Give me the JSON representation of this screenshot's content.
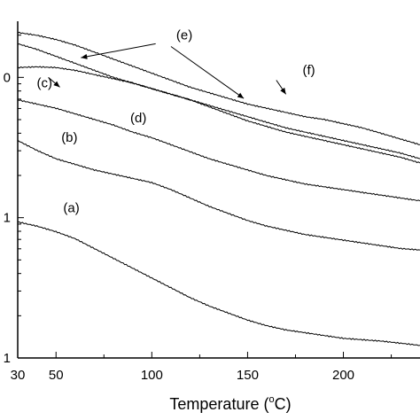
{
  "chart_data": {
    "type": "line",
    "title": "",
    "xlabel": "Temperature (°C)",
    "xlabel_parts": {
      "main": "Temperature (",
      "sup": "o",
      "tail": "C)"
    },
    "ylabel": "",
    "xlim": [
      30,
      240
    ],
    "ylim_log10": [
      -3.0,
      -0.6
    ],
    "x_ticks": [
      30,
      50,
      100,
      150,
      200
    ],
    "y_tick_labels": [
      {
        "label": "0",
        "log10": -1.0
      },
      {
        "label": "1",
        "log10": -2.0
      },
      {
        "label": "1",
        "log10": -3.0
      }
    ],
    "y_scale": "log",
    "grid": false,
    "series": [
      {
        "name": "(a)",
        "x": [
          30,
          40,
          50,
          60,
          70,
          80,
          90,
          100,
          110,
          120,
          130,
          140,
          150,
          160,
          170,
          180,
          190,
          200,
          210,
          220,
          230,
          240
        ],
        "y_log10": [
          -2.03,
          -2.06,
          -2.1,
          -2.15,
          -2.22,
          -2.29,
          -2.36,
          -2.43,
          -2.5,
          -2.57,
          -2.63,
          -2.68,
          -2.73,
          -2.77,
          -2.8,
          -2.82,
          -2.84,
          -2.86,
          -2.87,
          -2.88,
          -2.895,
          -2.91
        ]
      },
      {
        "name": "(b)",
        "x": [
          30,
          40,
          50,
          60,
          70,
          80,
          90,
          100,
          110,
          120,
          130,
          140,
          150,
          160,
          170,
          180,
          190,
          200,
          210,
          220,
          230,
          240
        ],
        "y_log10": [
          -1.45,
          -1.52,
          -1.58,
          -1.62,
          -1.66,
          -1.69,
          -1.72,
          -1.75,
          -1.8,
          -1.86,
          -1.92,
          -1.97,
          -2.02,
          -2.06,
          -2.09,
          -2.12,
          -2.14,
          -2.16,
          -2.18,
          -2.2,
          -2.22,
          -2.23
        ]
      },
      {
        "name": "(c)",
        "x": [
          30,
          40,
          50,
          60,
          70,
          80,
          90,
          100,
          110,
          120,
          130,
          140,
          150,
          160,
          170,
          180,
          190,
          200,
          210,
          220,
          230,
          240
        ],
        "y_log10": [
          -0.93,
          -0.925,
          -0.93,
          -0.95,
          -0.98,
          -1.01,
          -1.04,
          -1.08,
          -1.12,
          -1.16,
          -1.21,
          -1.26,
          -1.31,
          -1.35,
          -1.39,
          -1.42,
          -1.45,
          -1.48,
          -1.51,
          -1.54,
          -1.57,
          -1.61
        ]
      },
      {
        "name": "(d)",
        "x": [
          30,
          40,
          50,
          60,
          70,
          80,
          90,
          100,
          110,
          120,
          130,
          140,
          150,
          160,
          170,
          180,
          190,
          200,
          210,
          220,
          230,
          240
        ],
        "y_log10": [
          -1.16,
          -1.19,
          -1.22,
          -1.26,
          -1.3,
          -1.34,
          -1.39,
          -1.43,
          -1.48,
          -1.53,
          -1.58,
          -1.62,
          -1.66,
          -1.7,
          -1.73,
          -1.76,
          -1.78,
          -1.8,
          -1.82,
          -1.84,
          -1.86,
          -1.88
        ]
      },
      {
        "name": "(e)",
        "x": [
          30,
          40,
          50,
          60,
          70,
          80,
          90,
          100,
          110,
          120,
          130,
          140,
          150,
          160,
          170,
          180,
          190,
          200,
          210,
          220,
          230,
          240
        ],
        "y_log10": [
          -0.76,
          -0.8,
          -0.85,
          -0.9,
          -0.95,
          -1.0,
          -1.04,
          -1.08,
          -1.12,
          -1.16,
          -1.2,
          -1.24,
          -1.28,
          -1.32,
          -1.36,
          -1.39,
          -1.42,
          -1.45,
          -1.48,
          -1.51,
          -1.54,
          -1.58
        ]
      },
      {
        "name": "(f)",
        "x": [
          30,
          40,
          50,
          60,
          70,
          80,
          90,
          100,
          110,
          120,
          130,
          140,
          150,
          160,
          170,
          180,
          190,
          200,
          210,
          220,
          230,
          240
        ],
        "y_log10": [
          -0.68,
          -0.7,
          -0.73,
          -0.77,
          -0.82,
          -0.87,
          -0.92,
          -0.97,
          -1.02,
          -1.07,
          -1.11,
          -1.15,
          -1.19,
          -1.22,
          -1.25,
          -1.28,
          -1.3,
          -1.33,
          -1.36,
          -1.4,
          -1.44,
          -1.48
        ]
      }
    ],
    "labels": [
      {
        "text": "(a)",
        "x": 58,
        "y_log10": -1.96
      },
      {
        "text": "(b)",
        "x": 57,
        "y_log10": -1.46
      },
      {
        "text": "(c)",
        "x": 44,
        "y_log10": -1.07
      },
      {
        "text": "(d)",
        "x": 93,
        "y_log10": -1.32
      },
      {
        "text": "(e)",
        "x": 117,
        "y_log10": -0.73
      },
      {
        "text": "(f)",
        "x": 182,
        "y_log10": -0.98
      }
    ],
    "arrows": [
      {
        "from": [
          102,
          -0.76
        ],
        "to": [
          63,
          -0.86
        ]
      },
      {
        "from": [
          110,
          -0.78
        ],
        "to": [
          148,
          -1.15
        ]
      },
      {
        "from": [
          165,
          -1.02
        ],
        "to": [
          170,
          -1.12
        ]
      },
      {
        "from": [
          46,
          -1.0
        ],
        "to": [
          52,
          -1.07
        ]
      }
    ]
  }
}
